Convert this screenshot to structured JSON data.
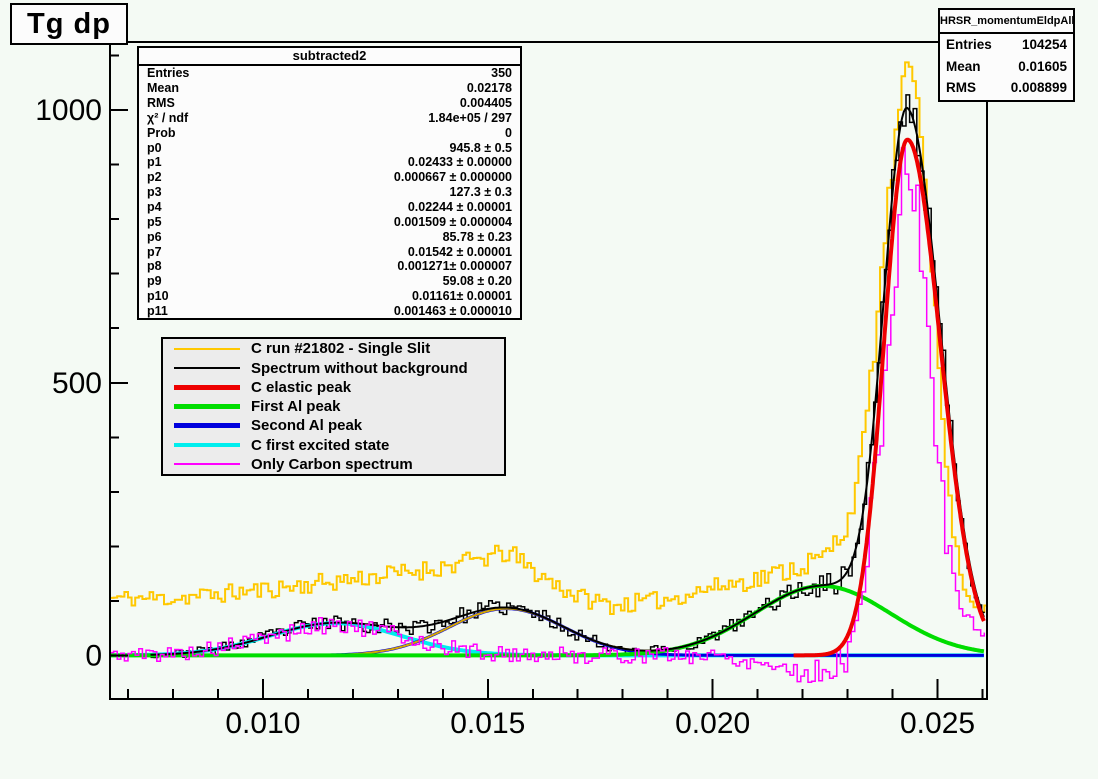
{
  "window": {
    "title": "Tg dp"
  },
  "stats_main": {
    "title": "subtracted2",
    "rows": [
      {
        "label": "Entries",
        "value": "350"
      },
      {
        "label": "Mean",
        "value": "0.02178"
      },
      {
        "label": "RMS",
        "value": "0.004405"
      },
      {
        "label": "χ² / ndf",
        "value": "1.84e+05 / 297"
      },
      {
        "label": "Prob",
        "value": "0"
      },
      {
        "label": "p0",
        "value": "945.8 ± 0.5"
      },
      {
        "label": "p1",
        "value": "0.02433 ± 0.00000"
      },
      {
        "label": "p2",
        "value": "0.000667 ± 0.000000"
      },
      {
        "label": "p3",
        "value": "127.3 ± 0.3"
      },
      {
        "label": "p4",
        "value": "0.02244 ± 0.00001"
      },
      {
        "label": "p5",
        "value": "0.001509 ± 0.000004"
      },
      {
        "label": "p6",
        "value": "85.78 ± 0.23"
      },
      {
        "label": "p7",
        "value": "0.01542 ± 0.00001"
      },
      {
        "label": "p8",
        "value": "0.001271± 0.000007"
      },
      {
        "label": "p9",
        "value": "59.08 ± 0.20"
      },
      {
        "label": "p10",
        "value": "0.01161± 0.00001"
      },
      {
        "label": "p11",
        "value": "0.001463 ± 0.000010"
      }
    ]
  },
  "stats_small": {
    "title": "HRSR_momentumEldpAll",
    "rows": [
      {
        "label": "Entries",
        "value": "104254"
      },
      {
        "label": "Mean",
        "value": "0.01605"
      },
      {
        "label": "RMS",
        "value": "0.008899"
      }
    ]
  },
  "legend": {
    "entries": [
      {
        "label": "C run #21802 - Single Slit",
        "color": "#ffc800",
        "thickness": 2
      },
      {
        "label": "Spectrum without background",
        "color": "#000000",
        "thickness": 2
      },
      {
        "label": "C elastic peak",
        "color": "#ee0000",
        "thickness": 5
      },
      {
        "label": "First Al peak",
        "color": "#00dd00",
        "thickness": 5
      },
      {
        "label": "Second Al peak",
        "color": "#0000dd",
        "thickness": 5
      },
      {
        "label": "C first excited state",
        "color": "#00eeee",
        "thickness": 4
      },
      {
        "label": "Only Carbon spectrum",
        "color": "#ff00ff",
        "thickness": 2
      }
    ]
  },
  "chart_data": {
    "type": "line",
    "title": "Tg dp",
    "xlabel": "",
    "ylabel": "",
    "xlim": [
      0.0066,
      0.0261
    ],
    "ylim": [
      -80,
      1125
    ],
    "grid": false,
    "legend_position": "upper-left-inside",
    "x_major_ticks": [
      0.01,
      0.015,
      0.02,
      0.025
    ],
    "x_tick_labels": [
      "0.010",
      "0.015",
      "0.020",
      "0.025"
    ],
    "x_minor_step": 0.001,
    "y_major_ticks": [
      0,
      500,
      1000
    ],
    "y_tick_labels": [
      "0",
      "500",
      "1000"
    ],
    "y_minor_step": 100,
    "gaussians": [
      {
        "name": "C elastic peak",
        "color": "#ee0000",
        "width": 4,
        "amplitude": 945.8,
        "mean": 0.02433,
        "sigma": 0.000667,
        "draw_sigma_left": 0.00052,
        "draw_sigma_right": 0.00073,
        "draw_range": [
          0.0218,
          0.02603
        ]
      },
      {
        "name": "First Al peak",
        "color": "#00dd00",
        "width": 4,
        "amplitude": 127.3,
        "mean": 0.02244,
        "sigma": 0.001509
      },
      {
        "name": "Second Al peak",
        "color": "#0000dd",
        "width": 3,
        "amplitude": 85.78,
        "mean": 0.01542,
        "sigma": 0.001271
      },
      {
        "name": "C first excited state",
        "color": "#00eeee",
        "width": 4,
        "amplitude": 59.08,
        "mean": 0.01161,
        "sigma": 0.001463
      }
    ],
    "derived_curves": [
      {
        "name": "Al peaks sum (fit)",
        "indices": [
          1,
          2
        ],
        "color": "#d4a800",
        "width": 2
      },
      {
        "name": "Total fit",
        "indices": [
          0,
          1,
          2,
          3
        ],
        "color": "#000000",
        "width": 2
      }
    ],
    "histograms": [
      {
        "name": "C run #21802 - Single Slit",
        "color": "#ffc800",
        "width": 2,
        "seed": 11,
        "bin_width": 8e-05,
        "x_start": 0.0066,
        "x_end": 0.0261,
        "envelope": [
          [
            0.0066,
            105
          ],
          [
            0.008,
            105
          ],
          [
            0.009,
            112
          ],
          [
            0.01,
            120
          ],
          [
            0.011,
            130
          ],
          [
            0.012,
            140
          ],
          [
            0.013,
            150
          ],
          [
            0.014,
            162
          ],
          [
            0.015,
            180
          ],
          [
            0.0155,
            188
          ],
          [
            0.016,
            155
          ],
          [
            0.017,
            108
          ],
          [
            0.0178,
            92
          ],
          [
            0.0185,
            98
          ],
          [
            0.019,
            103
          ],
          [
            0.02,
            125
          ],
          [
            0.021,
            140
          ],
          [
            0.022,
            165
          ],
          [
            0.0225,
            180
          ],
          [
            0.023,
            240
          ],
          [
            0.0233,
            350
          ],
          [
            0.0236,
            560
          ],
          [
            0.0239,
            820
          ],
          [
            0.0242,
            1030
          ],
          [
            0.0244,
            1085
          ],
          [
            0.0246,
            1010
          ],
          [
            0.0249,
            700
          ],
          [
            0.0251,
            450
          ],
          [
            0.0253,
            260
          ],
          [
            0.0255,
            160
          ],
          [
            0.0257,
            105
          ],
          [
            0.0261,
            82
          ]
        ],
        "jitter": [
          [
            0.0066,
            16
          ],
          [
            0.015,
            18
          ],
          [
            0.02,
            16
          ],
          [
            0.023,
            24
          ],
          [
            0.0243,
            25
          ],
          [
            0.0255,
            14
          ],
          [
            0.0261,
            10
          ]
        ]
      },
      {
        "name": "Spectrum without background",
        "color": "#000000",
        "width": 1.5,
        "seed": 23,
        "bin_width": 8e-05,
        "x_start": 0.0075,
        "x_end": 0.02605,
        "envelope": "total_fit",
        "jitter": [
          [
            0.0075,
            6
          ],
          [
            0.01,
            12
          ],
          [
            0.0116,
            15
          ],
          [
            0.015,
            15
          ],
          [
            0.019,
            10
          ],
          [
            0.022,
            18
          ],
          [
            0.0243,
            38
          ],
          [
            0.0255,
            20
          ],
          [
            0.02605,
            10
          ]
        ]
      },
      {
        "name": "Only Carbon spectrum",
        "color": "#ff00ff",
        "width": 1.5,
        "seed": 5,
        "bin_width": 8e-05,
        "x_start": 0.0066,
        "x_end": 0.02605,
        "envelope": [
          [
            0.0066,
            0
          ],
          [
            0.008,
            3
          ],
          [
            0.009,
            12
          ],
          [
            0.01,
            32
          ],
          [
            0.0116,
            59
          ],
          [
            0.013,
            38
          ],
          [
            0.014,
            15
          ],
          [
            0.015,
            4
          ],
          [
            0.016,
            1
          ],
          [
            0.017,
            0
          ],
          [
            0.02,
            0
          ],
          [
            0.0213,
            -15
          ],
          [
            0.0221,
            -35
          ],
          [
            0.0228,
            -20
          ],
          [
            0.0232,
            40
          ],
          [
            0.0236,
            300
          ],
          [
            0.0239,
            550
          ],
          [
            0.0242,
            850
          ],
          [
            0.0244,
            900
          ],
          [
            0.0246,
            780
          ],
          [
            0.0249,
            480
          ],
          [
            0.0252,
            220
          ],
          [
            0.0255,
            90
          ],
          [
            0.0258,
            55
          ],
          [
            0.02605,
            45
          ]
        ],
        "jitter": [
          [
            0.0066,
            13
          ],
          [
            0.012,
            16
          ],
          [
            0.016,
            15
          ],
          [
            0.02,
            15
          ],
          [
            0.0225,
            22
          ],
          [
            0.0236,
            60
          ],
          [
            0.0243,
            75
          ],
          [
            0.025,
            40
          ],
          [
            0.0255,
            18
          ],
          [
            0.02605,
            10
          ]
        ]
      }
    ]
  }
}
